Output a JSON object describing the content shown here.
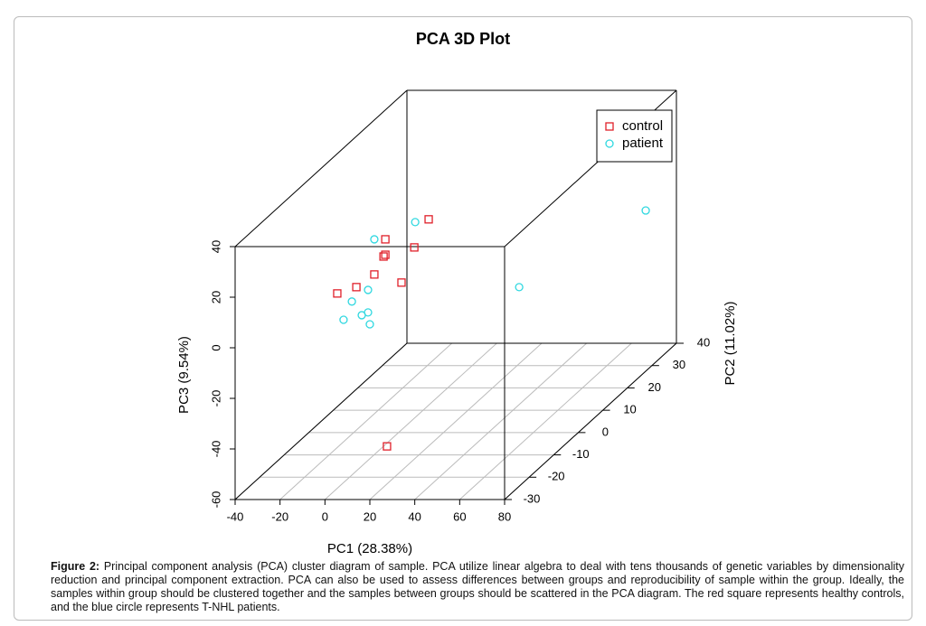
{
  "chart_data": {
    "type": "scatter3d",
    "title": "PCA 3D Plot",
    "xlabel": "PC1 (28.38%)",
    "ylabel": "PC2 (11.02%)",
    "zlabel": "PC3 (9.54%)",
    "xlim": [
      -40,
      80
    ],
    "ylim": [
      -30,
      40
    ],
    "zlim": [
      -60,
      40
    ],
    "xticks": [
      -40,
      -20,
      0,
      20,
      40,
      60,
      80
    ],
    "yticks": [
      -30,
      -20,
      -10,
      0,
      10,
      20,
      30,
      40
    ],
    "zticks": [
      -60,
      -40,
      -20,
      0,
      20,
      40
    ],
    "grid": true,
    "legend": "upper right",
    "series": [
      {
        "name": "control",
        "color": "#e0202a",
        "marker": "square",
        "x": [
          13.4,
          -5.9,
          7.0,
          -5.9,
          -6.7,
          -10.8,
          1.3,
          -18.8,
          -27.3,
          16.7
        ],
        "y": [
          0,
          0,
          0,
          0,
          0,
          0,
          0,
          0,
          0,
          -20
        ],
        "z": [
          24.3,
          16.4,
          13.2,
          10.3,
          9.6,
          2.5,
          -0.7,
          -2.5,
          -5.0,
          -47.8
        ]
      },
      {
        "name": "patient",
        "color": "#30d8e0",
        "marker": "circle",
        "x": [
          7.4,
          -10.8,
          71.8,
          53.7,
          -13.6,
          -20.8,
          -13.6,
          -16.4,
          -24.5,
          -12.8
        ],
        "y": [
          0,
          0,
          35,
          0,
          0,
          0,
          0,
          0,
          0,
          0
        ],
        "z": [
          23.2,
          16.4,
          -3.1,
          -2.5,
          -3.6,
          -8.2,
          -12.5,
          -13.6,
          -15.4,
          -17.2
        ]
      }
    ]
  },
  "caption": {
    "label": "Figure 2:",
    "text": "Principal component analysis (PCA) cluster diagram of sample. PCA utilize linear algebra to deal with tens thousands of genetic variables by dimensionality reduction and principal component extraction. PCA can also be used to assess differences between groups and reproducibility of sample within the group. Ideally, the samples within group should be clustered together and the samples between groups should be scattered in the PCA diagram. The red square represents healthy controls, and the blue circle represents T-NHL patients."
  }
}
